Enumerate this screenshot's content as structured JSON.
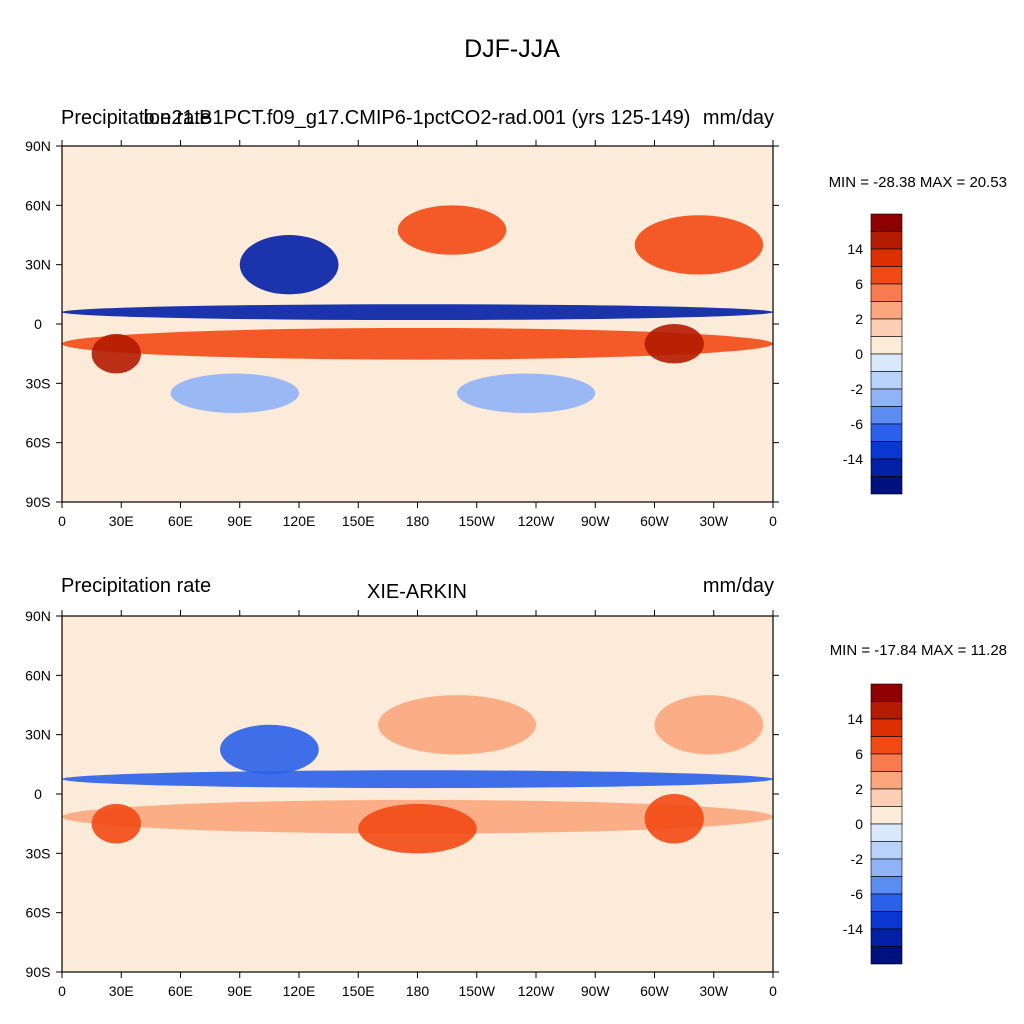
{
  "figure": {
    "title": "DJF-JJA"
  },
  "panels": [
    {
      "left_label": "Precipitation rate",
      "center_label": "b.e21.B1PCT.f09_g17.CMIP6-1pctCO2-rad.001 (yrs 125-149)",
      "right_label": "mm/day",
      "minmax": "MIN = -28.38 MAX =  20.53"
    },
    {
      "left_label": "Precipitation rate",
      "center_label": "XIE-ARKIN",
      "right_label": "mm/day",
      "minmax": "MIN = -17.84 MAX =  11.28"
    }
  ],
  "chart_data": [
    {
      "type": "heatmap",
      "subtype": "filled-contour-map",
      "title": "b.e21.B1PCT.f09_g17.CMIP6-1pctCO2-rad.001 (yrs 125-149)",
      "variable": "Precipitation rate",
      "units": "mm/day",
      "season_difference": "DJF-JJA",
      "min": -28.38,
      "max": 20.53,
      "xlim": [
        0,
        360
      ],
      "ylim": [
        -90,
        90
      ],
      "x_ticks": [
        "0",
        "30E",
        "60E",
        "90E",
        "120E",
        "150E",
        "180",
        "150W",
        "120W",
        "90W",
        "60W",
        "30W",
        "0"
      ],
      "y_ticks": [
        "90N",
        "60N",
        "30N",
        "0",
        "30S",
        "60S",
        "90S"
      ],
      "colorbar_labels": [
        "14",
        "6",
        "2",
        "0",
        "-2",
        "-6",
        "-14"
      ],
      "colorbar_colors": [
        "#8e0000",
        "#b41b00",
        "#dc3000",
        "#f24a14",
        "#f77b4e",
        "#fba67c",
        "#fdcfb4",
        "#fdebd9",
        "#d9e9fb",
        "#b8d2f9",
        "#8fb3f6",
        "#5b8cf0",
        "#2a60ea",
        "#0a37d2",
        "#0220a6",
        "#00107c"
      ],
      "regions": [
        {
          "id": "itcz_n",
          "lat": [
            2,
            10
          ],
          "lon": [
            0,
            360
          ],
          "level": "-14"
        },
        {
          "id": "sh_tropics",
          "lat": [
            -18,
            -2
          ],
          "lon": [
            0,
            360
          ],
          "level": "6"
        },
        {
          "id": "east_asia",
          "lat": [
            15,
            45
          ],
          "lon": [
            90,
            140
          ],
          "level": "-14"
        },
        {
          "id": "north_pacific",
          "lat": [
            35,
            60
          ],
          "lon": [
            170,
            225
          ],
          "level": "6"
        },
        {
          "id": "north_atlantic",
          "lat": [
            25,
            55
          ],
          "lon": [
            290,
            355
          ],
          "level": "6"
        },
        {
          "id": "south_america",
          "lat": [
            -20,
            0
          ],
          "lon": [
            295,
            325
          ],
          "level": "14"
        },
        {
          "id": "southern_africa",
          "lat": [
            -25,
            -5
          ],
          "lon": [
            15,
            40
          ],
          "level": "14"
        },
        {
          "id": "south_indian_ocean",
          "lat": [
            -45,
            -25
          ],
          "lon": [
            55,
            120
          ],
          "level": "-2"
        },
        {
          "id": "south_pacific",
          "lat": [
            -45,
            -25
          ],
          "lon": [
            200,
            270
          ],
          "level": "-2"
        }
      ]
    },
    {
      "type": "heatmap",
      "subtype": "filled-contour-map",
      "title": "XIE-ARKIN",
      "variable": "Precipitation rate",
      "units": "mm/day",
      "season_difference": "DJF-JJA",
      "min": -17.84,
      "max": 11.28,
      "xlim": [
        0,
        360
      ],
      "ylim": [
        -90,
        90
      ],
      "x_ticks": [
        "0",
        "30E",
        "60E",
        "90E",
        "120E",
        "150E",
        "180",
        "150W",
        "120W",
        "90W",
        "60W",
        "30W",
        "0"
      ],
      "y_ticks": [
        "90N",
        "60N",
        "30N",
        "0",
        "30S",
        "60S",
        "90S"
      ],
      "colorbar_labels": [
        "14",
        "6",
        "2",
        "0",
        "-2",
        "-6",
        "-14"
      ],
      "colorbar_colors": [
        "#8e0000",
        "#b41b00",
        "#dc3000",
        "#f24a14",
        "#f77b4e",
        "#fba67c",
        "#fdcfb4",
        "#fdebd9",
        "#d9e9fb",
        "#b8d2f9",
        "#8fb3f6",
        "#5b8cf0",
        "#2a60ea",
        "#0a37d2",
        "#0220a6",
        "#00107c"
      ],
      "regions": [
        {
          "id": "itcz_n",
          "lat": [
            3,
            12
          ],
          "lon": [
            0,
            360
          ],
          "level": "-6"
        },
        {
          "id": "sh_tropics",
          "lat": [
            -20,
            -3
          ],
          "lon": [
            0,
            360
          ],
          "level": "2"
        },
        {
          "id": "east_asia",
          "lat": [
            10,
            35
          ],
          "lon": [
            80,
            130
          ],
          "level": "-6"
        },
        {
          "id": "north_pacific",
          "lat": [
            20,
            50
          ],
          "lon": [
            160,
            240
          ],
          "level": "2"
        },
        {
          "id": "north_atlantic",
          "lat": [
            20,
            50
          ],
          "lon": [
            300,
            355
          ],
          "level": "2"
        },
        {
          "id": "south_america",
          "lat": [
            -25,
            0
          ],
          "lon": [
            295,
            325
          ],
          "level": "6"
        },
        {
          "id": "southern_africa",
          "lat": [
            -25,
            -5
          ],
          "lon": [
            15,
            40
          ],
          "level": "6"
        },
        {
          "id": "south_pacific",
          "lat": [
            -30,
            -5
          ],
          "lon": [
            150,
            210
          ],
          "level": "6"
        }
      ]
    }
  ]
}
